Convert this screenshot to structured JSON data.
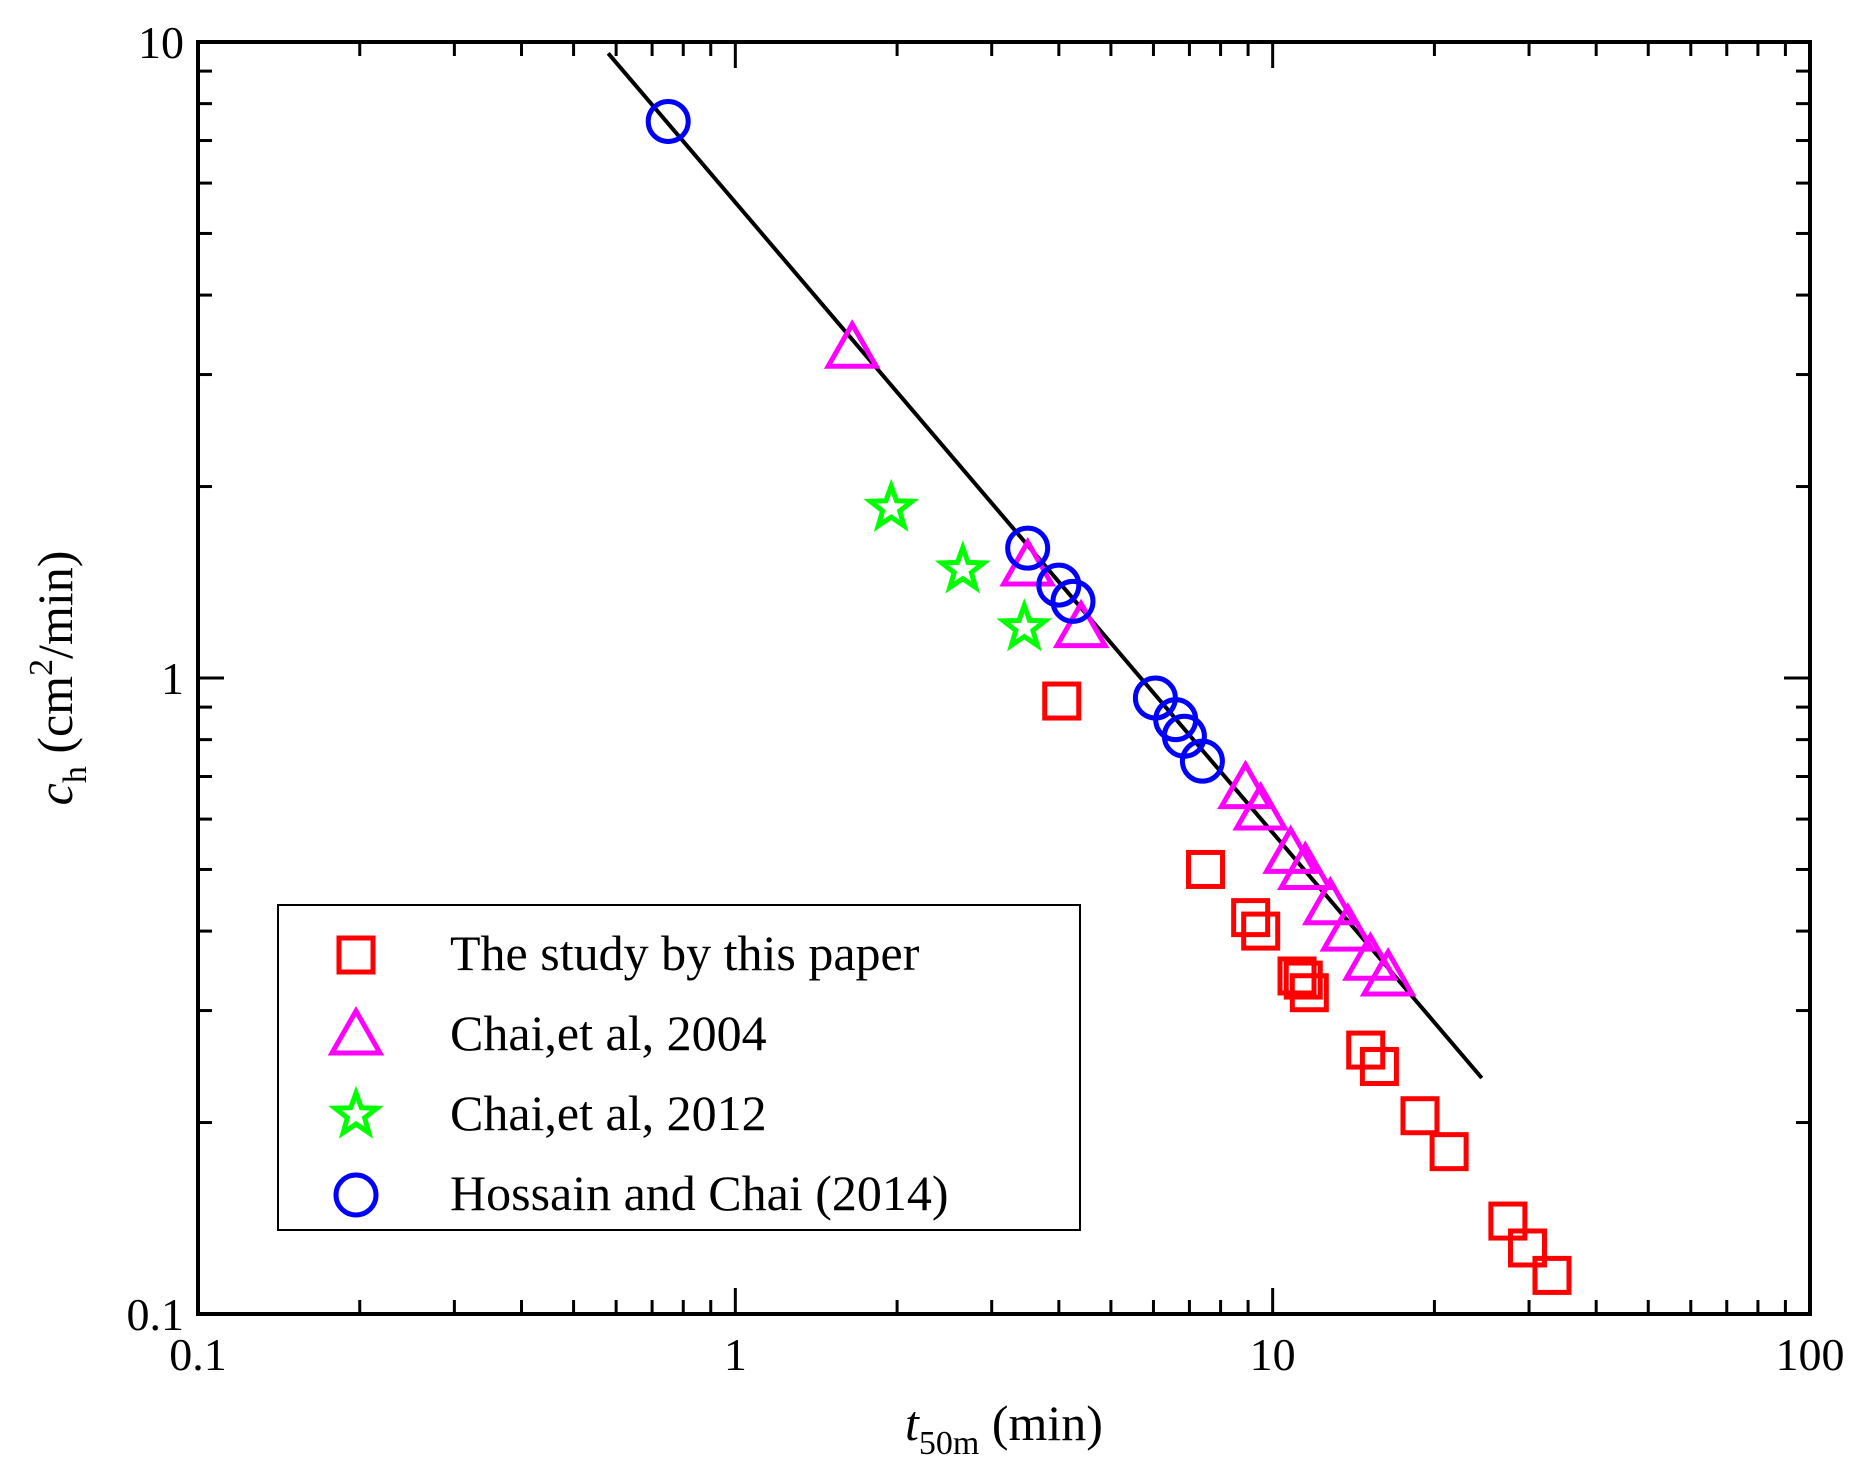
{
  "chart_data": {
    "type": "scatter",
    "x_scale": "log",
    "y_scale": "log",
    "xlim": [
      0.1,
      100
    ],
    "ylim": [
      0.1,
      10
    ],
    "xticks": [
      "0.1",
      "1",
      "10",
      "100"
    ],
    "yticks": [
      "0.1",
      "1",
      "10"
    ],
    "xlabel": {
      "main": "t",
      "sub": "50m",
      "rest": " (min)"
    },
    "ylabel": {
      "main": "c",
      "sub": "h",
      "rest1": " (cm",
      "sup": "2",
      "rest2": "/min)"
    },
    "legend_position": "bottom-left",
    "series": [
      {
        "name": "The study by this paper",
        "marker": "square",
        "color": "#ff0000",
        "points": [
          [
            4.05,
            0.92
          ],
          [
            7.5,
            0.5
          ],
          [
            9.1,
            0.42
          ],
          [
            9.5,
            0.4
          ],
          [
            11.1,
            0.34
          ],
          [
            11.4,
            0.335
          ],
          [
            11.7,
            0.32
          ],
          [
            14.9,
            0.26
          ],
          [
            15.8,
            0.245
          ],
          [
            18.8,
            0.205
          ],
          [
            21.3,
            0.18
          ],
          [
            27.4,
            0.14
          ],
          [
            29.8,
            0.127
          ],
          [
            33.1,
            0.115
          ]
        ]
      },
      {
        "name": "Chai,et al, 2004",
        "marker": "triangle",
        "color": "#ff00ff",
        "points": [
          [
            1.65,
            3.3
          ],
          [
            3.5,
            1.5
          ],
          [
            4.4,
            1.2
          ],
          [
            8.9,
            0.67
          ],
          [
            9.5,
            0.62
          ],
          [
            10.8,
            0.53
          ],
          [
            11.5,
            0.5
          ],
          [
            12.8,
            0.44
          ],
          [
            13.8,
            0.4
          ],
          [
            15.2,
            0.36
          ],
          [
            16.4,
            0.34
          ]
        ]
      },
      {
        "name": "Chai,et al, 2012",
        "marker": "star",
        "color": "#00ff00",
        "points": [
          [
            1.95,
            1.85
          ],
          [
            2.65,
            1.48
          ],
          [
            3.45,
            1.2
          ]
        ]
      },
      {
        "name": "Hossain and Chai (2014)",
        "marker": "circle",
        "color": "#0000ff",
        "points": [
          [
            0.75,
            7.5
          ],
          [
            3.5,
            1.6
          ],
          [
            4.0,
            1.4
          ],
          [
            4.25,
            1.32
          ],
          [
            6.05,
            0.93
          ],
          [
            6.6,
            0.86
          ],
          [
            6.85,
            0.81
          ],
          [
            7.4,
            0.74
          ]
        ]
      }
    ],
    "fit_line": {
      "color": "#000000",
      "x": [
        0.58,
        24.5
      ],
      "y": [
        9.6,
        0.235
      ]
    }
  }
}
